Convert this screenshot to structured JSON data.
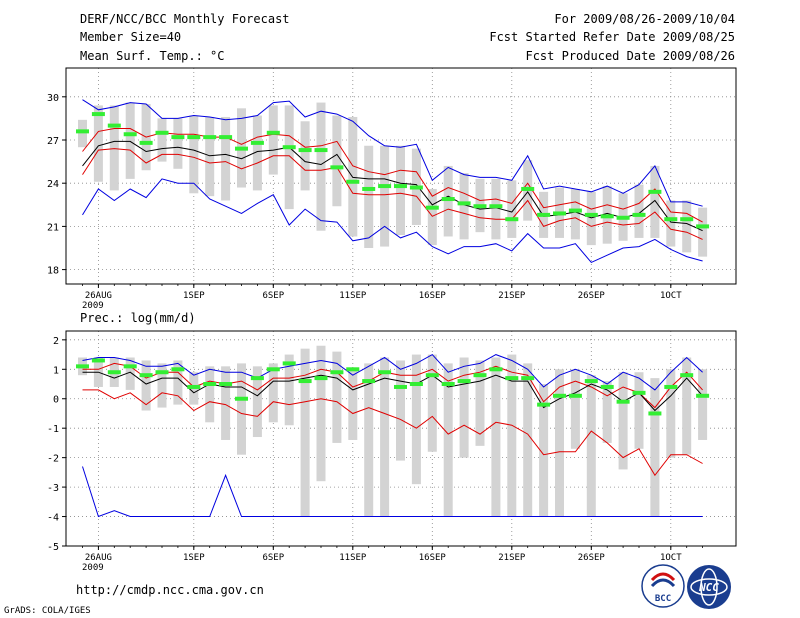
{
  "header": {
    "title": "DERF/NCC/BCC Monthly Forecast",
    "member_size": "Member Size=40",
    "variable": "Mean Surf. Temp.: °C",
    "period": "For 2009/08/26-2009/10/04",
    "start_date": "Fcst Started Refer Date 2009/08/25",
    "produced": "Fcst Produced Date 2009/08/26"
  },
  "footer": {
    "url": "http://cmdp.ncc.cma.gov.cn",
    "credit": "GrADS: COLA/IGES",
    "logo_bcc": "BCC",
    "logo_ncc": "NCC"
  },
  "colors": {
    "mean": "#000000",
    "spread": "#e00000",
    "extreme": "#0000e0",
    "box": "#d3d3d3",
    "observed": "#33ee33"
  },
  "chart_data": [
    {
      "type": "line",
      "title": "Mean Surf. Temp.: °C",
      "x_tick_labels": [
        "26AUG",
        "1SEP",
        "6SEP",
        "11SEP",
        "16SEP",
        "21SEP",
        "26SEP",
        "1OCT"
      ],
      "x_tick_days": [
        1,
        7,
        12,
        17,
        22,
        27,
        32,
        37
      ],
      "x_sublabel": "2009",
      "ylim": [
        17,
        32
      ],
      "yticks": [
        18,
        21,
        24,
        27,
        30
      ],
      "grid": true,
      "series": [
        {
          "name": "max",
          "color": "#0000e0",
          "values": [
            29.8,
            29.1,
            29.3,
            29.6,
            29.5,
            28.5,
            28.5,
            28.7,
            28.6,
            28.4,
            28.5,
            28.7,
            29.6,
            29.7,
            28.6,
            29.0,
            28.8,
            28.3,
            27.3,
            26.6,
            26.5,
            26.7,
            24.2,
            25.1,
            24.6,
            24.4,
            24.4,
            24.2,
            25.9,
            23.6,
            23.8,
            23.6,
            23.4,
            23.8,
            23.3,
            23.9,
            25.2,
            22.7,
            22.7,
            22.4
          ]
        },
        {
          "name": "upper",
          "color": "#e00000",
          "values": [
            26.2,
            27.6,
            27.8,
            27.8,
            27.2,
            27.5,
            27.4,
            27.4,
            27.2,
            27.2,
            26.7,
            27.2,
            27.4,
            27.3,
            26.5,
            26.6,
            26.9,
            25.2,
            24.8,
            24.6,
            24.9,
            24.8,
            23.1,
            23.7,
            23.3,
            22.8,
            22.9,
            22.6,
            24.0,
            22.3,
            22.5,
            22.7,
            22.2,
            22.5,
            22.2,
            22.6,
            23.6,
            22.0,
            21.9,
            21.3
          ]
        },
        {
          "name": "mean",
          "color": "#000000",
          "values": [
            25.2,
            26.6,
            26.9,
            26.9,
            26.2,
            26.4,
            26.5,
            26.3,
            25.9,
            26.0,
            25.7,
            26.2,
            26.3,
            26.5,
            25.5,
            25.3,
            26.0,
            24.4,
            24.3,
            24.3,
            24.0,
            23.9,
            22.5,
            23.1,
            22.5,
            22.2,
            22.3,
            22.0,
            23.4,
            21.7,
            21.8,
            22.0,
            21.6,
            21.9,
            21.6,
            21.9,
            22.8,
            21.3,
            21.2,
            20.7
          ]
        },
        {
          "name": "lower",
          "color": "#e00000",
          "values": [
            24.6,
            26.3,
            26.4,
            26.3,
            25.4,
            26.0,
            26.0,
            25.8,
            25.4,
            25.5,
            25.0,
            25.4,
            25.9,
            25.9,
            24.9,
            24.9,
            25.1,
            23.3,
            23.2,
            23.2,
            23.3,
            23.1,
            21.7,
            22.2,
            21.9,
            21.6,
            21.5,
            21.5,
            22.8,
            21.0,
            21.4,
            21.6,
            21.0,
            21.3,
            21.1,
            21.2,
            22.0,
            20.8,
            20.6,
            20.1
          ]
        },
        {
          "name": "min",
          "color": "#0000e0",
          "values": [
            21.8,
            23.6,
            22.8,
            23.6,
            23.0,
            24.3,
            24.0,
            24.0,
            22.9,
            22.4,
            21.9,
            22.6,
            23.2,
            21.1,
            22.2,
            21.4,
            21.3,
            20.0,
            20.2,
            21.0,
            20.2,
            20.6,
            19.6,
            19.1,
            19.6,
            19.6,
            19.8,
            19.3,
            20.5,
            19.5,
            19.5,
            19.8,
            18.5,
            19.0,
            19.5,
            19.6,
            20.1,
            19.4,
            18.9,
            18.6
          ]
        }
      ],
      "boxes": {
        "top": [
          28.4,
          29.4,
          29.4,
          29.6,
          29.5,
          28.5,
          28.5,
          28.7,
          28.6,
          28.6,
          29.2,
          28.7,
          29.4,
          29.4,
          28.3,
          29.6,
          28.7,
          28.6,
          26.6,
          26.6,
          26.6,
          26.4,
          23.6,
          25.2,
          24.7,
          24.3,
          24.3,
          24.2,
          25.6,
          23.4,
          23.7,
          23.6,
          23.4,
          23.8,
          23.3,
          23.9,
          25.2,
          22.8,
          22.8,
          22.3
        ],
        "bottom": [
          26.5,
          24.1,
          23.5,
          24.3,
          24.9,
          25.5,
          25.0,
          23.3,
          23.1,
          22.8,
          23.7,
          23.5,
          24.6,
          22.2,
          23.5,
          20.7,
          22.4,
          20.3,
          19.5,
          19.6,
          20.4,
          21.1,
          19.7,
          20.3,
          20.1,
          20.6,
          20.1,
          20.2,
          21.4,
          20.2,
          20.2,
          20.1,
          19.7,
          19.8,
          20.0,
          20.2,
          20.2,
          19.6,
          19.2,
          18.9
        ]
      },
      "observed": [
        27.6,
        28.8,
        28.0,
        27.4,
        26.8,
        27.5,
        27.2,
        27.2,
        27.2,
        27.2,
        26.4,
        26.8,
        27.5,
        26.5,
        26.3,
        26.3,
        25.1,
        24.1,
        23.6,
        23.8,
        23.8,
        23.7,
        22.3,
        22.9,
        22.6,
        22.4,
        22.4,
        21.5,
        23.6,
        21.8,
        21.9,
        22.1,
        21.8,
        21.7,
        21.6,
        21.8,
        23.4,
        21.5,
        21.5,
        21.0
      ]
    },
    {
      "type": "line",
      "title": "Prec.: log(mm/d)",
      "x_tick_labels": [
        "26AUG",
        "1SEP",
        "6SEP",
        "11SEP",
        "16SEP",
        "21SEP",
        "26SEP",
        "1OCT"
      ],
      "x_tick_days": [
        1,
        7,
        12,
        17,
        22,
        27,
        32,
        37
      ],
      "x_sublabel": "2009",
      "ylim": [
        -5,
        2.3
      ],
      "yticks": [
        -5,
        -4,
        -3,
        -2,
        -1,
        0,
        1,
        2
      ],
      "grid": true,
      "series": [
        {
          "name": "max",
          "color": "#0000e0",
          "values": [
            1.3,
            1.4,
            1.4,
            1.3,
            1.1,
            1.1,
            1.2,
            0.8,
            1.0,
            0.9,
            0.9,
            0.7,
            1.0,
            1.1,
            1.2,
            1.3,
            1.2,
            0.8,
            1.1,
            1.4,
            1.0,
            1.2,
            1.5,
            0.9,
            1.1,
            1.2,
            1.5,
            1.3,
            1.0,
            0.4,
            0.8,
            1.0,
            0.8,
            0.5,
            0.9,
            0.7,
            0.3,
            0.9,
            1.4,
            0.9
          ]
        },
        {
          "name": "upper",
          "color": "#e00000",
          "values": [
            1.0,
            1.0,
            1.2,
            1.1,
            0.7,
            0.9,
            0.9,
            0.4,
            0.6,
            0.5,
            0.6,
            0.3,
            0.7,
            0.7,
            0.8,
            1.0,
            0.9,
            0.4,
            0.6,
            0.9,
            0.8,
            0.8,
            1.0,
            0.6,
            0.8,
            0.9,
            1.1,
            0.9,
            0.8,
            -0.1,
            0.4,
            0.6,
            0.4,
            0.1,
            0.4,
            0.2,
            -0.3,
            0.4,
            0.9,
            0.3
          ]
        },
        {
          "name": "mean",
          "color": "#000000",
          "values": [
            0.9,
            0.9,
            0.7,
            0.9,
            0.5,
            0.7,
            0.7,
            0.2,
            0.5,
            0.4,
            0.4,
            0.1,
            0.6,
            0.6,
            0.7,
            0.8,
            0.7,
            0.3,
            0.5,
            0.7,
            0.6,
            0.5,
            0.8,
            0.4,
            0.5,
            0.6,
            0.8,
            0.6,
            0.6,
            -0.3,
            0.0,
            0.2,
            0.5,
            0.3,
            -0.1,
            0.2,
            -0.4,
            0.1,
            0.7,
            0.1
          ]
        },
        {
          "name": "lower",
          "color": "#e00000",
          "values": [
            0.3,
            0.3,
            0.0,
            0.2,
            -0.2,
            0.2,
            0.1,
            -0.4,
            -0.1,
            -0.2,
            -0.5,
            -0.6,
            -0.1,
            -0.2,
            -0.1,
            0.0,
            -0.1,
            -0.5,
            -0.3,
            -0.5,
            -0.7,
            -1.0,
            -0.6,
            -1.2,
            -0.9,
            -1.2,
            -0.8,
            -0.9,
            -1.2,
            -1.9,
            -1.8,
            -1.8,
            -1.1,
            -1.5,
            -2.0,
            -1.7,
            -2.6,
            -1.9,
            -1.9,
            -2.2
          ]
        },
        {
          "name": "min",
          "color": "#0000e0",
          "values": [
            -2.3,
            -4.0,
            -3.8,
            -4.0,
            -4.0,
            -4.0,
            -4.0,
            -4.0,
            -4.0,
            -2.6,
            -4.0,
            -4.0,
            -4.0,
            -4.0,
            -4.0,
            -4.0,
            -4.0,
            -4.0,
            -4.0,
            -4.0,
            -4.0,
            -4.0,
            -4.0,
            -4.0,
            -4.0,
            -4.0,
            -4.0,
            -4.0,
            -4.0,
            -4.0,
            -4.0,
            -4.0,
            -4.0,
            -4.0,
            -4.0,
            -4.0,
            -4.0,
            -4.0,
            -4.0,
            -4.0
          ]
        }
      ],
      "boxes": {
        "top": [
          1.4,
          1.4,
          1.4,
          1.4,
          1.3,
          1.2,
          1.3,
          0.9,
          1.1,
          1.1,
          1.2,
          1.1,
          1.2,
          1.5,
          1.7,
          1.8,
          1.6,
          1.0,
          1.2,
          1.4,
          1.3,
          1.5,
          1.5,
          1.2,
          1.4,
          1.3,
          1.4,
          1.5,
          1.2,
          0.5,
          1.0,
          1.0,
          0.8,
          0.6,
          0.9,
          0.9,
          0.7,
          1.0,
          1.4,
          1.0
        ],
        "bottom": [
          0.8,
          0.4,
          0.4,
          0.3,
          -0.4,
          -0.3,
          -0.2,
          -0.2,
          -0.8,
          -1.4,
          -1.9,
          -1.3,
          -0.8,
          -0.9,
          -4.0,
          -2.8,
          -1.5,
          -1.4,
          -4.0,
          -4.0,
          -2.1,
          -2.9,
          -1.8,
          -4.0,
          -2.0,
          -1.6,
          -4.0,
          -4.0,
          -4.0,
          -4.0,
          -4.0,
          -1.7,
          -4.0,
          -1.5,
          -2.4,
          -1.7,
          -4.0,
          -2.0,
          -1.9,
          -1.4
        ]
      },
      "observed": [
        1.1,
        1.3,
        0.9,
        1.1,
        0.8,
        0.9,
        1.0,
        0.4,
        0.5,
        0.5,
        0.0,
        0.7,
        1.0,
        1.2,
        0.6,
        0.7,
        0.9,
        1.0,
        0.6,
        0.9,
        0.4,
        0.5,
        0.8,
        0.5,
        0.6,
        0.8,
        1.0,
        0.7,
        0.7,
        -0.2,
        0.1,
        0.1,
        0.6,
        0.4,
        -0.1,
        0.2,
        -0.5,
        0.4,
        0.8,
        0.1
      ]
    }
  ]
}
